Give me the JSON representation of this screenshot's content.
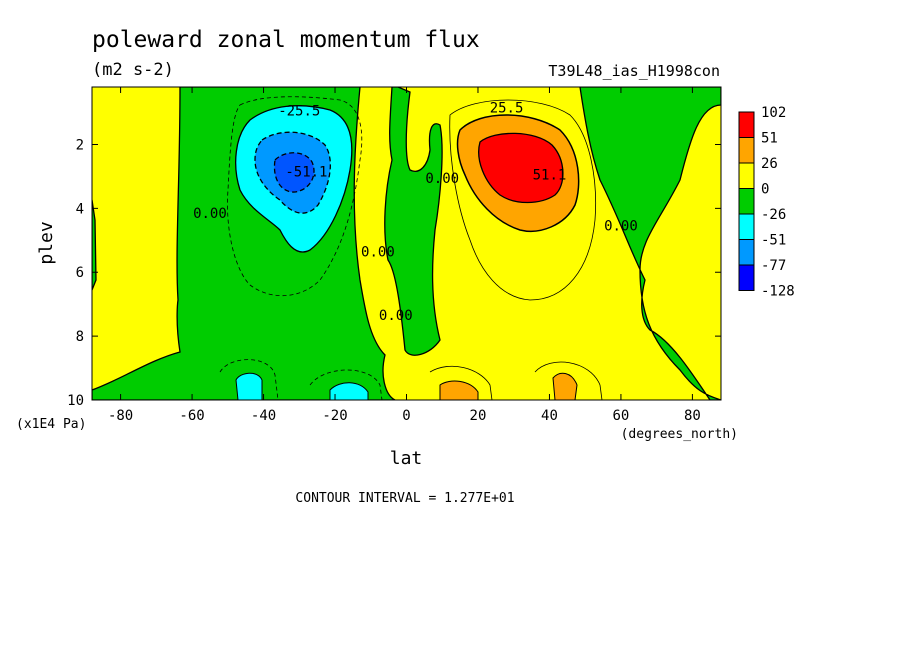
{
  "chart_data": {
    "type": "heatmap",
    "title": "poleward zonal momentum flux",
    "units": "(m2 s-2)",
    "run_label": "T39L48_ias_H1998con",
    "xlabel": "lat",
    "ylabel": "plev",
    "x_unit_label": "(degrees_north)",
    "y_unit_label": "(x1E4 Pa)",
    "xlim": [
      -88,
      88
    ],
    "ylim": [
      10,
      0.2
    ],
    "x_ticks": [
      -80,
      -60,
      -40,
      -20,
      0,
      20,
      40,
      60,
      80
    ],
    "y_ticks": [
      2,
      4,
      6,
      8,
      10
    ],
    "x_tick_labels": [
      "-80",
      "-60",
      "-40",
      "-20",
      "0",
      "20",
      "40",
      "60",
      "80"
    ],
    "y_tick_labels": [
      "2",
      "4",
      "6",
      "8",
      "10"
    ],
    "contour_interval_text": "CONTOUR INTERVAL = 1.277E+01",
    "contour_labels": [
      {
        "text": "-25.5",
        "lat": -30,
        "plev": 1.1
      },
      {
        "text": "-51.1",
        "lat": -28,
        "plev": 3.0
      },
      {
        "text": "0.00",
        "lat": -55,
        "plev": 4.3
      },
      {
        "text": "0.00",
        "lat": -8,
        "plev": 5.5
      },
      {
        "text": "0.00",
        "lat": -3,
        "plev": 7.5
      },
      {
        "text": "0.00",
        "lat": 10,
        "plev": 3.2
      },
      {
        "text": "25.5",
        "lat": 28,
        "plev": 1.0
      },
      {
        "text": "51.1",
        "lat": 40,
        "plev": 3.1
      },
      {
        "text": "0.00",
        "lat": 60,
        "plev": 4.7
      }
    ],
    "colorbar": {
      "labels": [
        "102",
        "51",
        "26",
        "0",
        "-26",
        "-51",
        "-77",
        "-128"
      ],
      "colors": [
        "#ff0000",
        "#ffa500",
        "#ffff00",
        "#00cc00",
        "#00ffff",
        "#0099ff",
        "#0000ff"
      ]
    },
    "colors": {
      "positive_low": "#ffff00",
      "negative_low": "#00cc00",
      "negative_mid": "#00ffff",
      "negative_high": "#0099ff",
      "negative_max": "#0055ff",
      "positive_mid": "#ffa500",
      "positive_max": "#ff0000"
    },
    "features": [
      {
        "kind": "min",
        "lat": -34,
        "plev": 2.8,
        "value": -77
      },
      {
        "kind": "max",
        "lat": 32,
        "plev": 2.8,
        "value": 102
      }
    ]
  }
}
